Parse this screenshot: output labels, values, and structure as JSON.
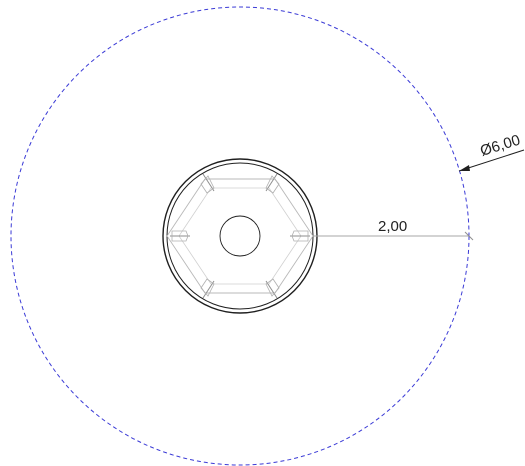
{
  "drawing": {
    "dimensions": {
      "diameter_label": "Ø6,00",
      "radius_label": "2,00"
    },
    "colors": {
      "outline": "#1f1f1f",
      "construction": "#3a3ad6",
      "leader": "#9a9a9a",
      "light_detail": "#b9b9b9",
      "text": "#222222"
    }
  }
}
